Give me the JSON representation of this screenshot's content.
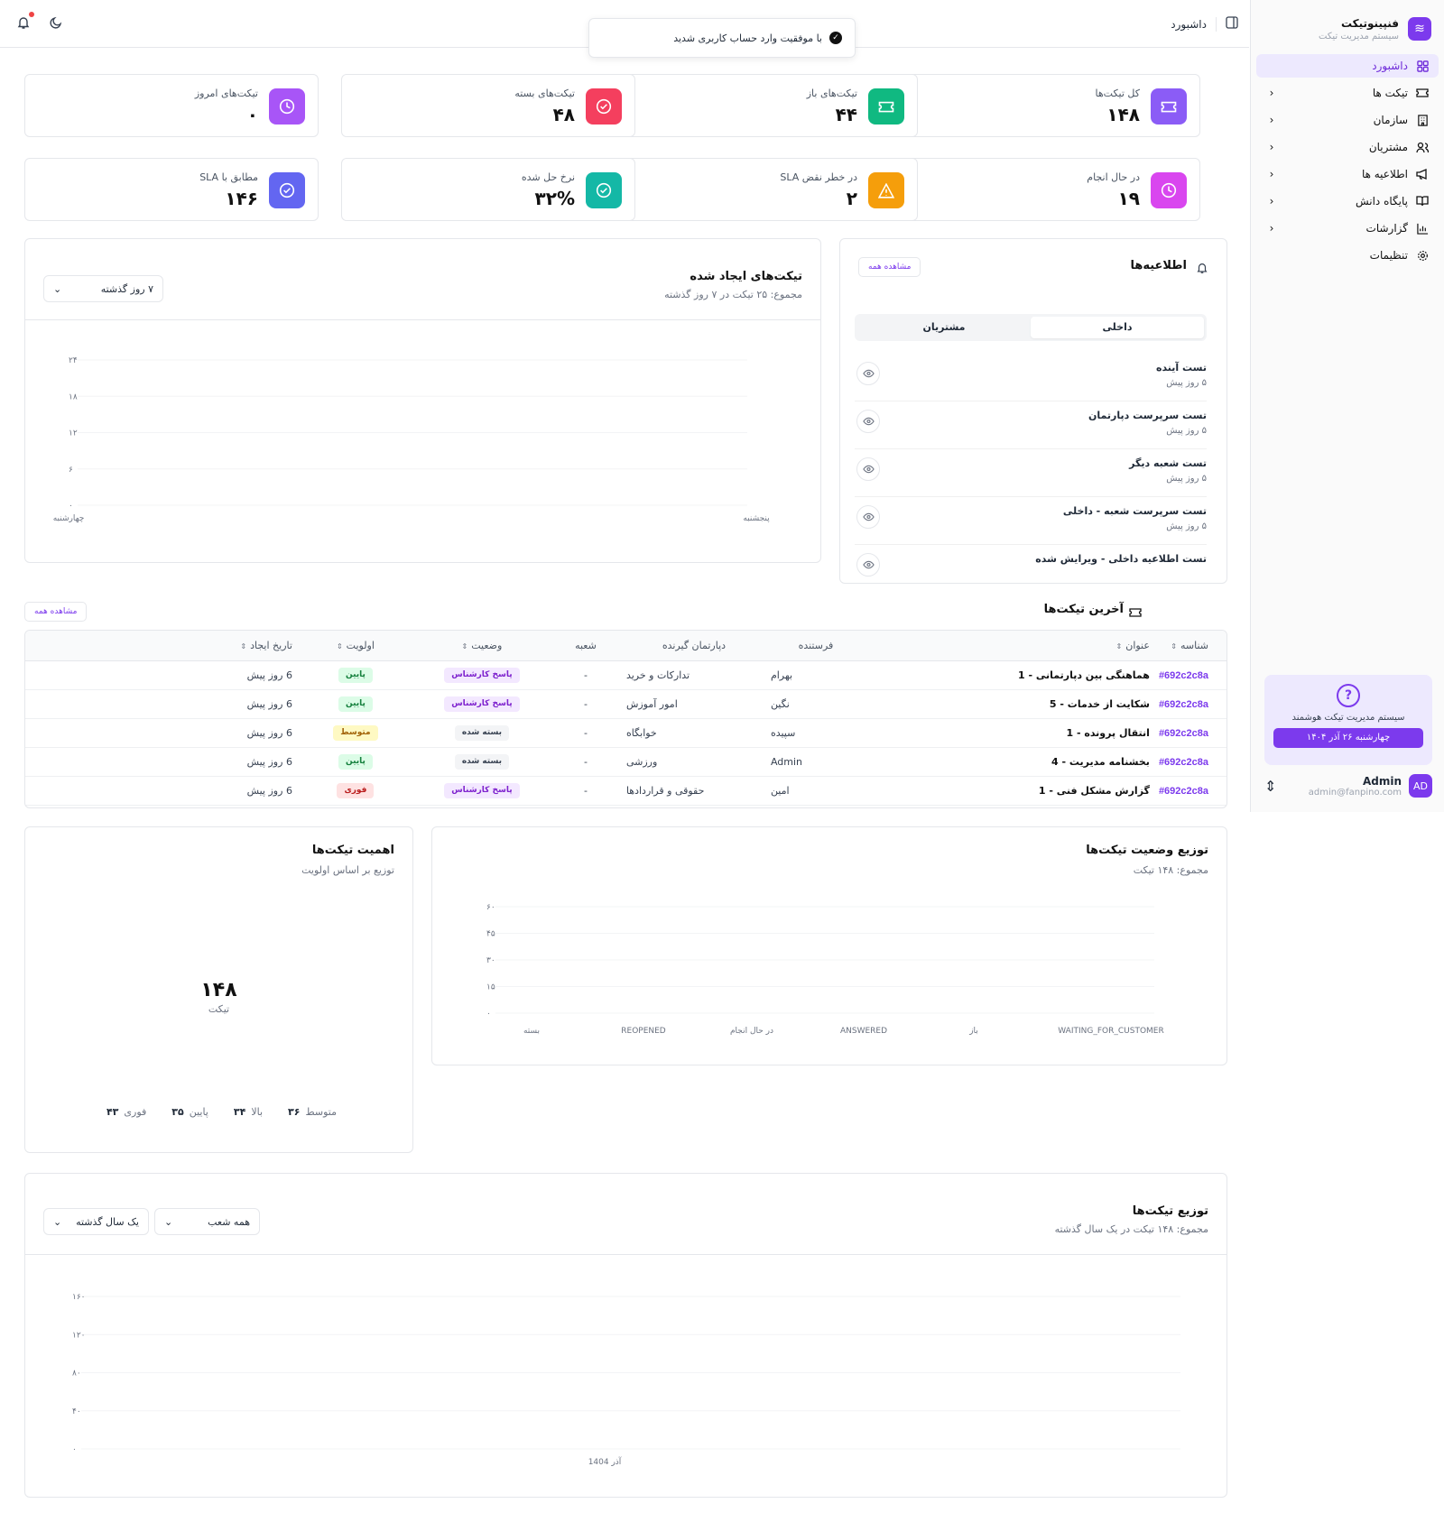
{
  "sidebar": {
    "brand_name": "فنپینوتیکت",
    "brand_sub": "سیستم مدیریت تیکت",
    "items": [
      {
        "label": "داشبورد",
        "icon": "grid-icon",
        "active": true
      },
      {
        "label": "تیکت ها",
        "icon": "ticket-icon"
      },
      {
        "label": "سازمان",
        "icon": "building-icon"
      },
      {
        "label": "مشتریان",
        "icon": "users-icon"
      },
      {
        "label": "اطلاعیه ها",
        "icon": "megaphone-icon"
      },
      {
        "label": "پایگاه دانش",
        "icon": "book-icon"
      },
      {
        "label": "گزارشات",
        "icon": "bar-chart-icon"
      },
      {
        "label": "تنظیمات",
        "icon": "gear-icon"
      }
    ],
    "promo_text": "سیستم مدیریت تیکت هوشمند",
    "promo_date": "چهارشنبه ۲۶ آذر ۱۴۰۴",
    "user_name": "Admin",
    "user_email": "admin@fanpino.com",
    "user_initials": "AD"
  },
  "topbar": {
    "breadcrumb": "داشبورد"
  },
  "toast": "با موفقیت وارد حساب کاربری شدید",
  "stats": [
    {
      "label": "کل تیکت‌ها",
      "value": "۱۴۸",
      "color": "#8b5cf6",
      "icon": "ticket-icon"
    },
    {
      "label": "تیکت‌های باز",
      "value": "۴۴",
      "color": "#10b981",
      "icon": "ticket-icon"
    },
    {
      "label": "تیکت‌های بسته",
      "value": "۴۸",
      "color": "#f43f5e",
      "icon": "check-circle-icon"
    },
    {
      "label": "تیکت‌های امروز",
      "value": "۰",
      "color": "#a855f7",
      "icon": "clock-icon"
    },
    {
      "label": "در حال انجام",
      "value": "۱۹",
      "color": "#d946ef",
      "icon": "clock-icon"
    },
    {
      "label": "در خطر نقض SLA",
      "value": "۲",
      "color": "#f59e0b",
      "icon": "warning-icon"
    },
    {
      "label": "نرخ حل شده",
      "value": "۳۲%",
      "color": "#14b8a6",
      "icon": "check-circle-icon"
    },
    {
      "label": "مطابق با SLA",
      "value": "۱۴۶",
      "color": "#6366f1",
      "icon": "check-circle-icon"
    }
  ],
  "created": {
    "title": "تیکت‌های ایجاد شده",
    "subtitle": "مجموع: ۲۵ تیکت در ۷ روز گذشته",
    "select": "۷ روز گذشته"
  },
  "announcements": {
    "title": "اطلاعیه‌ها",
    "view_all": "مشاهده همه",
    "tabs": [
      "داخلی",
      "مشتریان"
    ],
    "items": [
      {
        "title": "تست آینده",
        "date": "۵ روز پیش"
      },
      {
        "title": "تست سرپرست دپارتمان",
        "date": "۵ روز پیش"
      },
      {
        "title": "تست شعبه دیگر",
        "date": "۵ روز پیش"
      },
      {
        "title": "تست سرپرست شعبه - داخلی",
        "date": "۵ روز پیش"
      },
      {
        "title": "تست اطلاعیه داخلی - ویرایش شده",
        "date": ""
      }
    ]
  },
  "latest": {
    "title": "آخرین تیکت‌ها",
    "view_all": "مشاهده همه",
    "headers": [
      "شناسه",
      "عنوان",
      "فرستنده",
      "دپارتمان گیرنده",
      "شعبه",
      "وضعیت",
      "اولویت",
      "تاریخ ایجاد"
    ],
    "rows": [
      {
        "id": "#692c2c8a",
        "title": "هماهنگی بین دپارتمانی - 1",
        "sender": "بهرام",
        "dept": "تدارکات و خرید",
        "branch": "-",
        "status": "پاسخ کارشناس",
        "status_kind": "purple",
        "priority": "پایین",
        "priority_kind": "green",
        "date": "6 روز پیش"
      },
      {
        "id": "#692c2c8a",
        "title": "شکایت از خدمات - 5",
        "sender": "نگین",
        "dept": "امور آموزش",
        "branch": "-",
        "status": "پاسخ کارشناس",
        "status_kind": "purple",
        "priority": "پایین",
        "priority_kind": "green",
        "date": "6 روز پیش"
      },
      {
        "id": "#692c2c8a",
        "title": "انتقال پرونده - 1",
        "sender": "سپیده",
        "dept": "خوابگاه",
        "branch": "-",
        "status": "بسته شده",
        "status_kind": "gray",
        "priority": "متوسط",
        "priority_kind": "yellow",
        "date": "6 روز پیش"
      },
      {
        "id": "#692c2c8a",
        "title": "بخشنامه مدیریت - 4",
        "sender": "Admin",
        "dept": "ورزشی",
        "branch": "-",
        "status": "بسته شده",
        "status_kind": "gray",
        "priority": "پایین",
        "priority_kind": "green",
        "date": "6 روز پیش"
      },
      {
        "id": "#692c2c8a",
        "title": "گزارش مشکل فنی - 1",
        "sender": "امین",
        "dept": "حقوقی و قراردادها",
        "branch": "-",
        "status": "پاسخ کارشناس",
        "status_kind": "purple",
        "priority": "فوری",
        "priority_kind": "red",
        "date": "6 روز پیش"
      }
    ]
  },
  "status_dist": {
    "title": "توزیع وضعیت تیکت‌ها",
    "subtitle": "مجموع: ۱۴۸ تیکت"
  },
  "importance": {
    "title": "اهمیت تیکت‌ها",
    "subtitle": "توزیع بر اساس اولویت",
    "center_value": "۱۴۸",
    "center_label": "تیکت",
    "legend": [
      {
        "label": "متوسط",
        "value": "۳۶"
      },
      {
        "label": "بالا",
        "value": "۳۴"
      },
      {
        "label": "پایین",
        "value": "۳۵"
      },
      {
        "label": "فوری",
        "value": "۴۳"
      }
    ]
  },
  "distribution": {
    "title": "توزیع تیکت‌ها",
    "subtitle": "مجموع: ۱۴۸ تیکت در یک سال گذشته",
    "select_branch": "همه شعب",
    "select_period": "یک سال گذشته"
  },
  "chart_data": [
    {
      "type": "line",
      "x": [
        "چهارشنبه",
        "پنجشنبه"
      ],
      "y_ticks": [
        "۰",
        "۶",
        "۱۲",
        "۱۸",
        "۲۴"
      ],
      "ylim": [
        0,
        24
      ]
    },
    {
      "type": "bar",
      "categories": [
        "WAITING_FOR_CUSTOMER",
        "باز",
        "ANSWERED",
        "در حال انجام",
        "REOPENED",
        "بسته"
      ],
      "y_ticks": [
        "۰",
        "۱۵",
        "۳۰",
        "۴۵",
        "۶۰"
      ],
      "ylim": [
        0,
        60
      ]
    },
    {
      "type": "pie",
      "labels": [
        "متوسط",
        "بالا",
        "پایین",
        "فوری"
      ],
      "values": [
        36,
        34,
        35,
        43
      ]
    },
    {
      "type": "area",
      "x": [
        "آذر 1404"
      ],
      "y_ticks": [
        "۰",
        "۴۰",
        "۸۰",
        "۱۲۰",
        "۱۶۰"
      ],
      "ylim": [
        0,
        160
      ]
    }
  ]
}
